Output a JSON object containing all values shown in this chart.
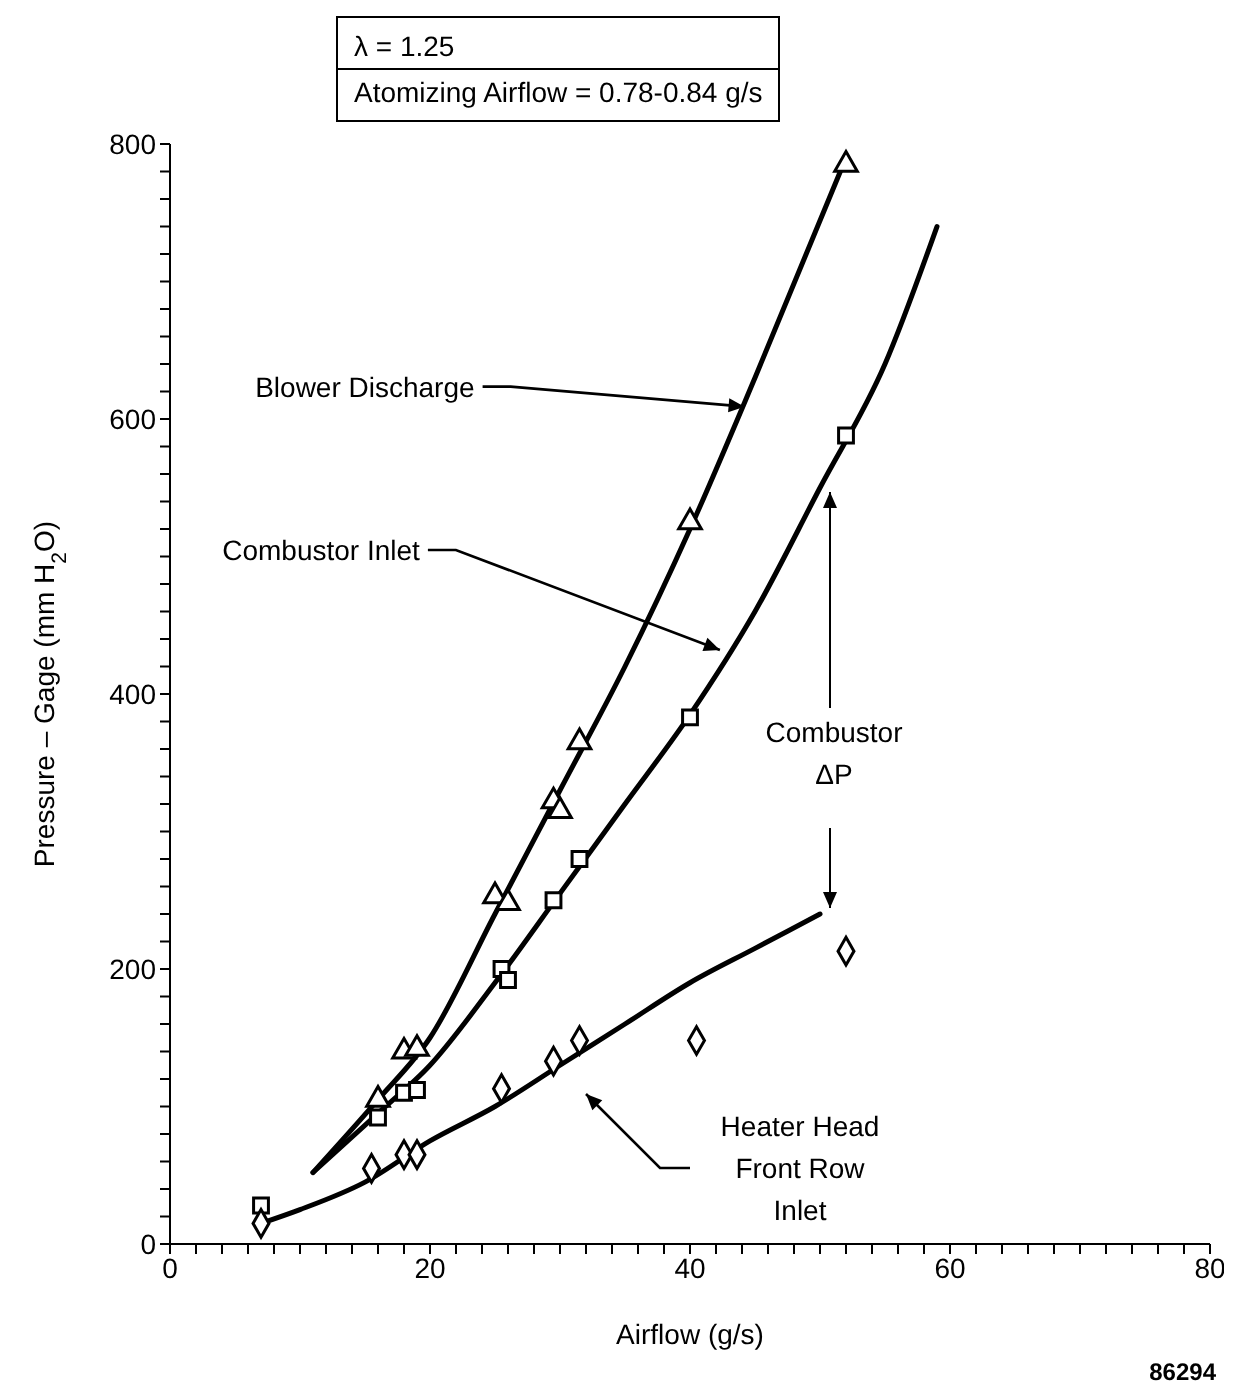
{
  "chart_data": {
    "type": "scatter",
    "title": "λ = 1.25",
    "subtitle": "Atomizing Airflow = 0.78-0.84 g/s",
    "xlabel": "Airflow (g/s)",
    "ylabel": "Pressure – Gage (mm H$_{2}$O)",
    "xlim": [
      0,
      80
    ],
    "ylim": [
      0,
      800
    ],
    "xticks": [
      0,
      {
        "value": 2,
        "label": null
      },
      {
        "value": 4,
        "label": null
      },
      {
        "value": 6,
        "label": null
      },
      {
        "value": 8,
        "label": null
      },
      {
        "value": 10,
        "label": null
      },
      {
        "value": 12,
        "label": null
      },
      {
        "value": 14,
        "label": null
      },
      {
        "value": 16,
        "label": null
      },
      {
        "value": 18,
        "label": null
      },
      20,
      {
        "value": 22,
        "label": null
      },
      {
        "value": 24,
        "label": null
      },
      {
        "value": 26,
        "label": null
      },
      {
        "value": 28,
        "label": null
      },
      {
        "value": 30,
        "label": null
      },
      {
        "value": 32,
        "label": null
      },
      {
        "value": 34,
        "label": null
      },
      {
        "value": 36,
        "label": null
      },
      {
        "value": 38,
        "label": null
      },
      40,
      {
        "value": 42,
        "label": null
      },
      {
        "value": 44,
        "label": null
      },
      {
        "value": 46,
        "label": null
      },
      {
        "value": 48,
        "label": null
      },
      {
        "value": 50,
        "label": null
      },
      {
        "value": 52,
        "label": null
      },
      {
        "value": 54,
        "label": null
      },
      {
        "value": 56,
        "label": null
      },
      {
        "value": 58,
        "label": null
      },
      60,
      {
        "value": 62,
        "label": null
      },
      {
        "value": 64,
        "label": null
      },
      {
        "value": 66,
        "label": null
      },
      {
        "value": 68,
        "label": null
      },
      {
        "value": 70,
        "label": null
      },
      {
        "value": 72,
        "label": null
      },
      {
        "value": 74,
        "label": null
      },
      {
        "value": 76,
        "label": null
      },
      {
        "value": 78,
        "label": null
      },
      80
    ],
    "yticks": [
      0,
      {
        "value": 20,
        "label": null
      },
      {
        "value": 40,
        "label": null
      },
      {
        "value": 60,
        "label": null
      },
      {
        "value": 80,
        "label": null
      },
      {
        "value": 100,
        "label": null
      },
      {
        "value": 120,
        "label": null
      },
      {
        "value": 140,
        "label": null
      },
      {
        "value": 160,
        "label": null
      },
      {
        "value": 180,
        "label": null
      },
      200,
      {
        "value": 220,
        "label": null
      },
      {
        "value": 240,
        "label": null
      },
      {
        "value": 260,
        "label": null
      },
      {
        "value": 280,
        "label": null
      },
      {
        "value": 300,
        "label": null
      },
      {
        "value": 320,
        "label": null
      },
      {
        "value": 340,
        "label": null
      },
      {
        "value": 360,
        "label": null
      },
      {
        "value": 380,
        "label": null
      },
      400,
      {
        "value": 420,
        "label": null
      },
      {
        "value": 440,
        "label": null
      },
      {
        "value": 460,
        "label": null
      },
      {
        "value": 480,
        "label": null
      },
      {
        "value": 500,
        "label": null
      },
      {
        "value": 520,
        "label": null
      },
      {
        "value": 540,
        "label": null
      },
      {
        "value": 560,
        "label": null
      },
      {
        "value": 580,
        "label": null
      },
      600,
      {
        "value": 620,
        "label": null
      },
      {
        "value": 640,
        "label": null
      },
      {
        "value": 660,
        "label": null
      },
      {
        "value": 680,
        "label": null
      },
      {
        "value": 700,
        "label": null
      },
      {
        "value": 720,
        "label": null
      },
      {
        "value": 740,
        "label": null
      },
      {
        "value": 760,
        "label": null
      },
      {
        "value": 780,
        "label": null
      },
      800
    ],
    "grid": false,
    "legend": false,
    "series": [
      {
        "marker": "triangle",
        "color": "#000000",
        "x": [
          16,
          18,
          19,
          25,
          26,
          29.5,
          30,
          31.5,
          40,
          52
        ],
        "values": [
          105,
          140,
          142,
          253,
          248,
          322,
          315,
          365,
          525,
          785
        ]
      },
      {
        "marker": "square",
        "color": "#000000",
        "x": [
          7,
          16,
          18,
          19,
          25.5,
          26,
          29.5,
          31.5,
          40,
          52
        ],
        "values": [
          28,
          92,
          110,
          112,
          200,
          192,
          250,
          280,
          383,
          588
        ]
      },
      {
        "marker": "diamond",
        "color": "#000000",
        "x": [
          7,
          15.5,
          18,
          19,
          25.5,
          29.5,
          31.5,
          40.5,
          52
        ],
        "values": [
          15,
          55,
          65,
          65,
          113,
          133,
          148,
          148,
          213
        ]
      },
      {
        "type": "line",
        "marker": "none",
        "line_style": "solid",
        "color": "#000000",
        "x": [
          11,
          16,
          20,
          25,
          30,
          35,
          40,
          45,
          52
        ],
        "values": [
          52,
          105,
          150,
          240,
          330,
          420,
          520,
          630,
          790
        ]
      },
      {
        "type": "line",
        "marker": "none",
        "line_style": "solid",
        "color": "#000000",
        "x": [
          11,
          16,
          20,
          25,
          30,
          35,
          40,
          45,
          50,
          55,
          59
        ],
        "values": [
          52,
          95,
          130,
          190,
          255,
          320,
          385,
          460,
          550,
          640,
          740
        ]
      },
      {
        "type": "line",
        "marker": "none",
        "line_style": "solid",
        "color": "#000000",
        "x": [
          7,
          10,
          15,
          20,
          25,
          30,
          35,
          40,
          45,
          50
        ],
        "values": [
          15,
          25,
          45,
          75,
          100,
          130,
          160,
          190,
          215,
          240
        ]
      }
    ],
    "annotations": [
      {
        "text": "Blower Discharge",
        "x": 44.2,
        "y": 609
      },
      {
        "text": "Combustor Inlet",
        "x": 42.3,
        "y": 432
      },
      "Heater Head Front Row Inlet",
      "Combustor ΔP",
      "86294"
    ]
  }
}
